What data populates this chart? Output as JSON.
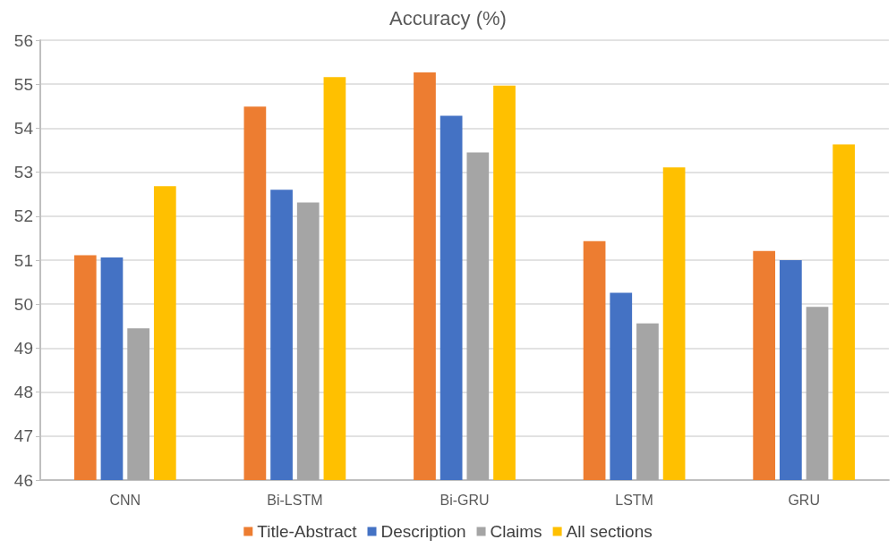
{
  "chart_data": {
    "type": "bar",
    "title": "Accuracy (%)",
    "categories": [
      "CNN",
      "Bi-LSTM",
      "Bi-GRU",
      "LSTM",
      "GRU"
    ],
    "series": [
      {
        "name": "Title-Abstract",
        "color": "#ed7d31",
        "values": [
          51.11,
          54.49,
          55.27,
          51.43,
          51.21
        ]
      },
      {
        "name": "Description",
        "color": "#4472c4",
        "values": [
          51.06,
          52.6,
          54.28,
          50.26,
          51.0
        ]
      },
      {
        "name": "Claims",
        "color": "#a5a5a5",
        "values": [
          49.45,
          52.31,
          53.45,
          49.56,
          49.94
        ]
      },
      {
        "name": "All sections",
        "color": "#ffc000",
        "values": [
          52.68,
          55.16,
          54.97,
          53.11,
          53.63
        ]
      }
    ],
    "ylim": [
      46,
      56
    ],
    "yticks": [
      46,
      47,
      48,
      49,
      50,
      51,
      52,
      53,
      54,
      55,
      56
    ],
    "grid": "y",
    "legend": "bottom"
  }
}
